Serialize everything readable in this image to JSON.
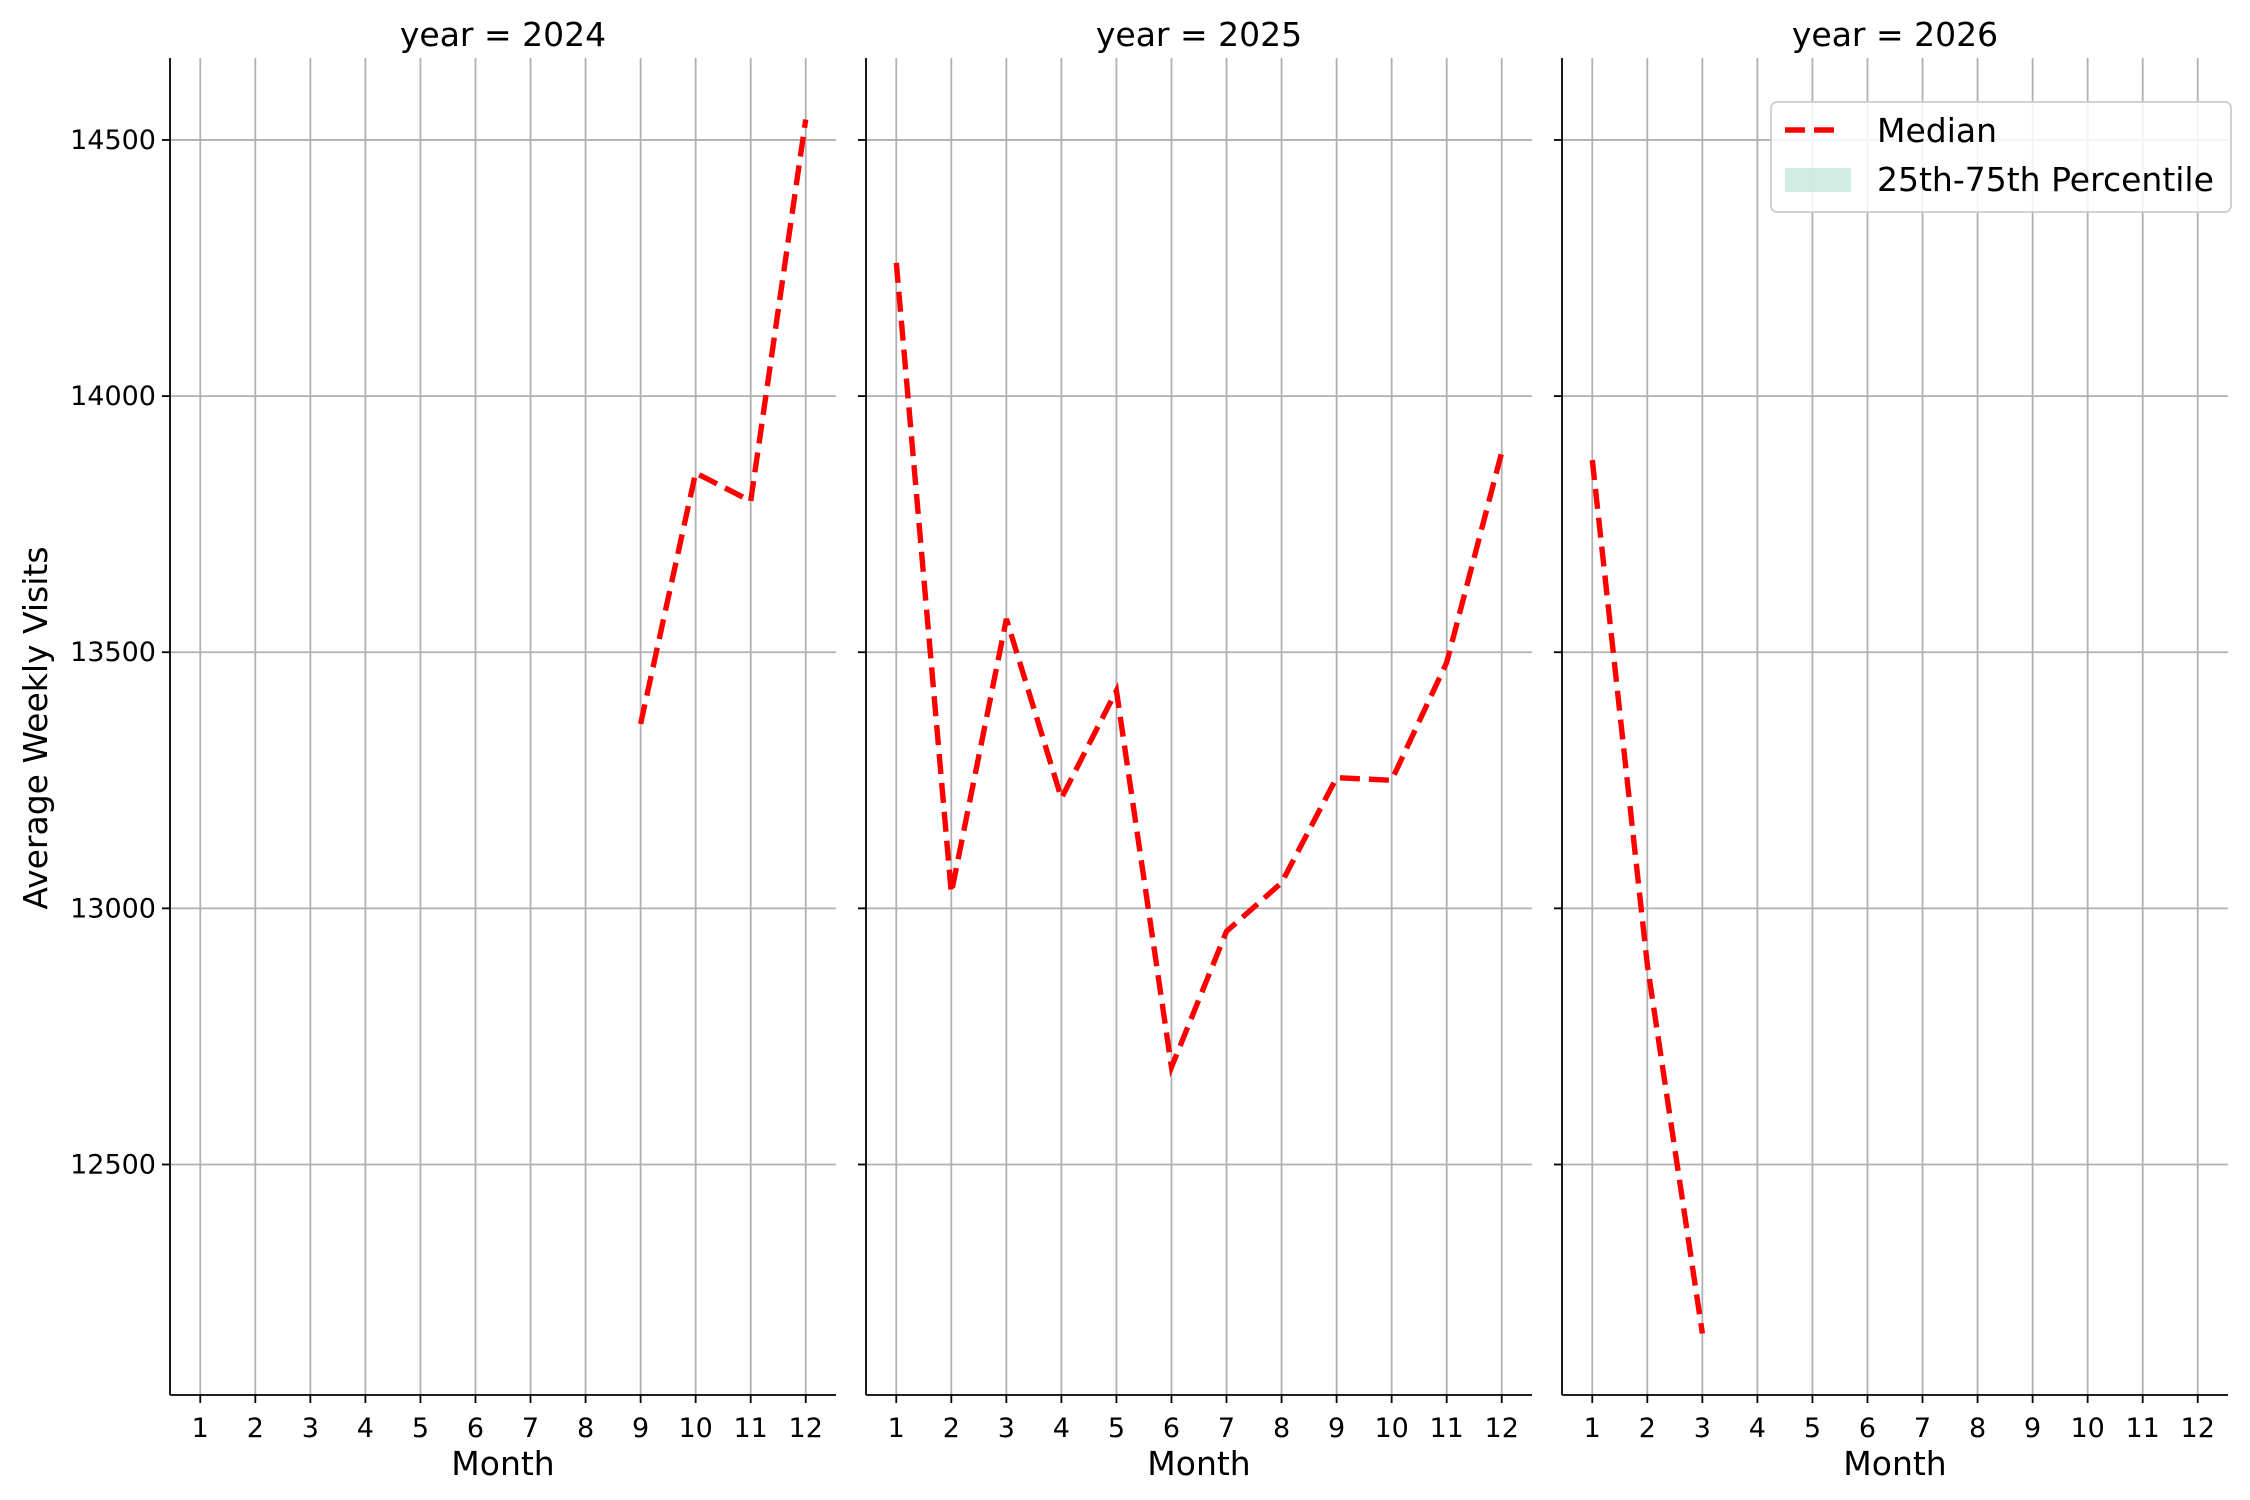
{
  "chart_data": {
    "type": "line",
    "ylabel": "Average Weekly Visits",
    "xlabel": "Month",
    "y_ticks": [
      12500,
      13000,
      13500,
      14000,
      14500
    ],
    "ylim": [
      12050,
      14660
    ],
    "x_ticks": [
      1,
      2,
      3,
      4,
      5,
      6,
      7,
      8,
      9,
      10,
      11,
      12
    ],
    "xlim": [
      0.45,
      12.55
    ],
    "grid": true,
    "legend": {
      "placement": "upper-right",
      "entries": [
        {
          "label": "Median",
          "style": "dashed-line",
          "color": "#ff0000"
        },
        {
          "label": "25th-75th Percentile",
          "style": "band",
          "color": "#b2dfd1"
        }
      ]
    },
    "panels": [
      {
        "title": "year = 2024",
        "series": [
          {
            "name": "Median",
            "x": [
              9,
              10,
              11,
              12
            ],
            "values": [
              13360,
              13850,
              13795,
              14540
            ]
          }
        ]
      },
      {
        "title": "year = 2025",
        "series": [
          {
            "name": "Median",
            "x": [
              1,
              2,
              3,
              4,
              5,
              6,
              7,
              8,
              9,
              10,
              11,
              12
            ],
            "values": [
              14260,
              13030,
              13565,
              13215,
              13425,
              12690,
              12955,
              13050,
              13255,
              13250,
              13480,
              13890
            ]
          }
        ]
      },
      {
        "title": "year = 2026",
        "series": [
          {
            "name": "Median",
            "x": [
              1,
              2,
              3
            ],
            "values": [
              13875,
              12890,
              12170
            ]
          }
        ]
      }
    ]
  }
}
